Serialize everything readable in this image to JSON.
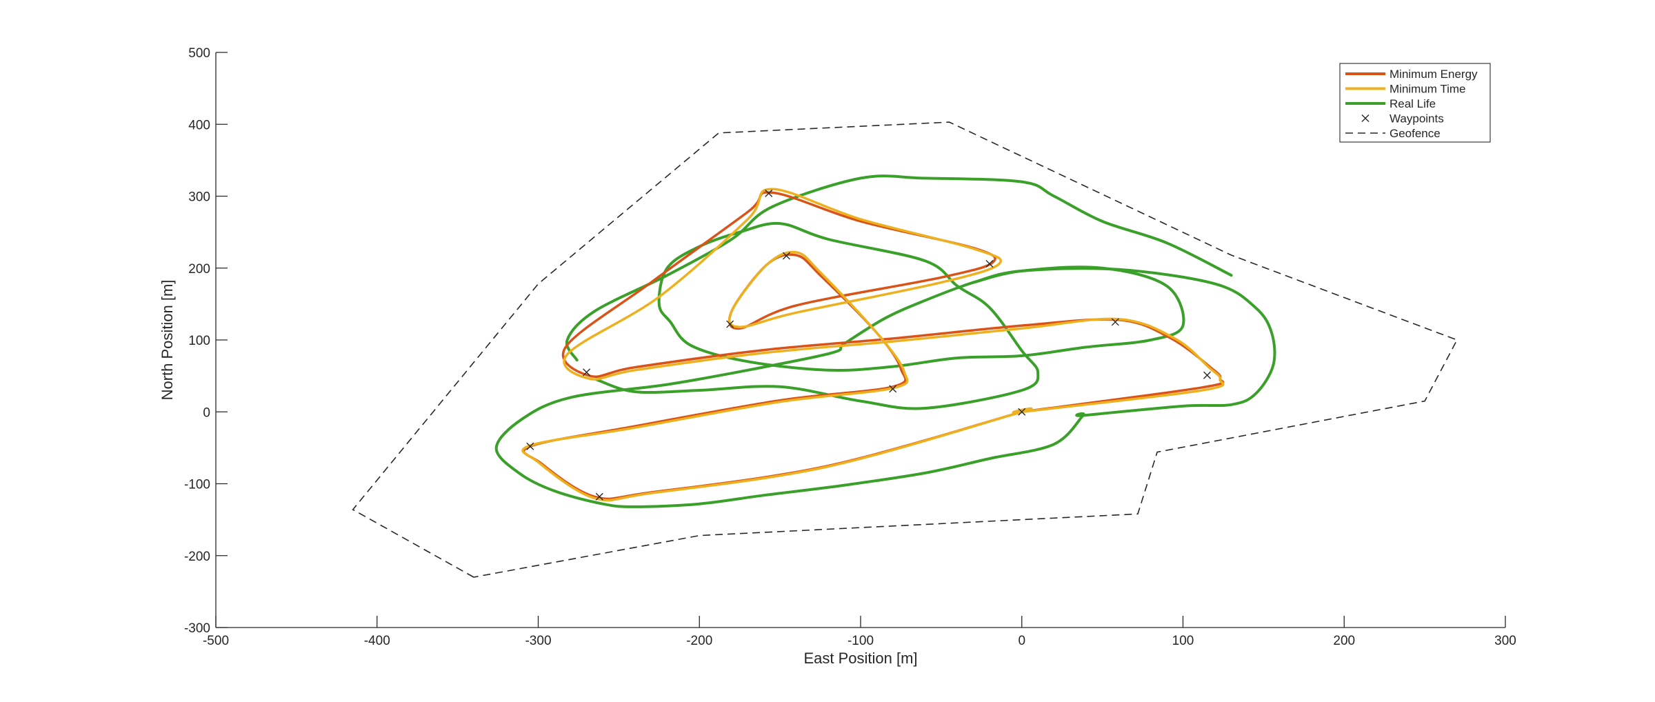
{
  "chart_data": {
    "type": "line",
    "title": "",
    "xlabel": "East Position [m]",
    "ylabel": "North Position [m]",
    "xlim": [
      -500,
      300
    ],
    "ylim": [
      -300,
      500
    ],
    "xticks": [
      -500,
      -400,
      -300,
      -200,
      -100,
      0,
      100,
      200,
      300
    ],
    "yticks": [
      -300,
      -200,
      -100,
      0,
      100,
      200,
      300,
      400,
      500
    ],
    "xtick_labels": [
      "-500",
      "-400",
      "-300",
      "-200",
      "-100",
      "0",
      "100",
      "200",
      "300"
    ],
    "ytick_labels": [
      "-300",
      "-200",
      "-100",
      "0",
      "100",
      "200",
      "300",
      "400",
      "500"
    ],
    "grid": false,
    "legend_position": "top-right",
    "colors": {
      "minimum_energy": "#d95319",
      "minimum_time": "#edb120",
      "real_life": "#3aa02a",
      "waypoints": "#262626",
      "geofence": "#262626",
      "axis": "#262626"
    },
    "series": [
      {
        "name": "Minimum Energy",
        "style": "solid",
        "points": [
          [
            0,
            0
          ],
          [
            112,
            34
          ],
          [
            123,
            46
          ],
          [
            117,
            62
          ],
          [
            92,
            103
          ],
          [
            60,
            128
          ],
          [
            0,
            120
          ],
          [
            -80,
            102
          ],
          [
            -160,
            86
          ],
          [
            -240,
            62
          ],
          [
            -268,
            50
          ],
          [
            -283,
            90
          ],
          [
            -230,
            180
          ],
          [
            -170,
            278
          ],
          [
            -155,
            305
          ],
          [
            -100,
            265
          ],
          [
            -30,
            228
          ],
          [
            -18,
            208
          ],
          [
            -50,
            187
          ],
          [
            -140,
            148
          ],
          [
            -175,
            116
          ],
          [
            -180,
            140
          ],
          [
            -158,
            205
          ],
          [
            -140,
            218
          ],
          [
            -125,
            190
          ],
          [
            -90,
            110
          ],
          [
            -75,
            60
          ],
          [
            -80,
            35
          ],
          [
            -150,
            16
          ],
          [
            -240,
            -20
          ],
          [
            -305,
            -48
          ],
          [
            -298,
            -72
          ],
          [
            -265,
            -118
          ],
          [
            -230,
            -112
          ],
          [
            -120,
            -75
          ],
          [
            0,
            0
          ]
        ]
      },
      {
        "name": "Minimum Time",
        "style": "solid",
        "points": [
          [
            0,
            0
          ],
          [
            112,
            30
          ],
          [
            123,
            45
          ],
          [
            116,
            62
          ],
          [
            95,
            102
          ],
          [
            60,
            129
          ],
          [
            0,
            116
          ],
          [
            -80,
            98
          ],
          [
            -160,
            82
          ],
          [
            -240,
            58
          ],
          [
            -268,
            46
          ],
          [
            -282,
            80
          ],
          [
            -225,
            160
          ],
          [
            -170,
            268
          ],
          [
            -155,
            310
          ],
          [
            -100,
            268
          ],
          [
            -30,
            227
          ],
          [
            -14,
            206
          ],
          [
            -50,
            180
          ],
          [
            -140,
            138
          ],
          [
            -175,
            118
          ],
          [
            -180,
            140
          ],
          [
            -158,
            205
          ],
          [
            -140,
            222
          ],
          [
            -125,
            194
          ],
          [
            -90,
            110
          ],
          [
            -73,
            56
          ],
          [
            -80,
            33
          ],
          [
            -150,
            14
          ],
          [
            -240,
            -22
          ],
          [
            -305,
            -47
          ],
          [
            -300,
            -70
          ],
          [
            -265,
            -120
          ],
          [
            -230,
            -113
          ],
          [
            -120,
            -76
          ],
          [
            0,
            0
          ]
        ]
      },
      {
        "name": "Real Life",
        "style": "solid",
        "points": [
          [
            38,
            -5
          ],
          [
            100,
            8
          ],
          [
            130,
            10
          ],
          [
            145,
            25
          ],
          [
            156,
            65
          ],
          [
            155,
            110
          ],
          [
            145,
            145
          ],
          [
            120,
            178
          ],
          [
            60,
            198
          ],
          [
            0,
            196
          ],
          [
            -30,
            180
          ],
          [
            -60,
            155
          ],
          [
            -85,
            130
          ],
          [
            -110,
            95
          ],
          [
            -118,
            82
          ],
          [
            -170,
            58
          ],
          [
            -220,
            38
          ],
          [
            -280,
            20
          ],
          [
            -310,
            -10
          ],
          [
            -326,
            -50
          ],
          [
            -312,
            -85
          ],
          [
            -290,
            -110
          ],
          [
            -260,
            -128
          ],
          [
            -240,
            -132
          ],
          [
            -200,
            -128
          ],
          [
            -160,
            -116
          ],
          [
            -110,
            -102
          ],
          [
            -60,
            -85
          ],
          [
            -20,
            -65
          ],
          [
            20,
            -45
          ],
          [
            38,
            -5
          ]
        ],
        "extra_paths": [
          [
            [
              -264,
              45
            ],
            [
              -240,
              28
            ],
            [
              -200,
              30
            ],
            [
              -150,
              35
            ],
            [
              -100,
              15
            ],
            [
              -60,
              5
            ],
            [
              0,
              30
            ],
            [
              10,
              55
            ],
            [
              0,
              85
            ],
            [
              -20,
              145
            ],
            [
              -40,
              175
            ],
            [
              -60,
              210
            ],
            [
              -120,
              240
            ],
            [
              -150,
              262
            ],
            [
              -175,
              250
            ],
            [
              -200,
              230
            ],
            [
              -220,
              200
            ],
            [
              -225,
              150
            ],
            [
              -218,
              125
            ],
            [
              -205,
              92
            ],
            [
              -170,
              70
            ],
            [
              -120,
              58
            ],
            [
              -80,
              63
            ],
            [
              -40,
              75
            ],
            [
              0,
              78
            ],
            [
              40,
              90
            ],
            [
              80,
              100
            ],
            [
              100,
              120
            ],
            [
              90,
              175
            ],
            [
              50,
              200
            ],
            [
              0,
              196
            ],
            [
              -30,
              180
            ]
          ],
          [
            [
              -276,
              72
            ],
            [
              -282,
              100
            ],
            [
              -265,
              140
            ],
            [
              -220,
              190
            ],
            [
              -180,
              240
            ],
            [
              -155,
              285
            ],
            [
              -100,
              325
            ],
            [
              -60,
              325
            ],
            [
              0,
              320
            ],
            [
              20,
              300
            ],
            [
              50,
              265
            ],
            [
              90,
              235
            ],
            [
              130,
              190
            ]
          ]
        ]
      },
      {
        "name": "Waypoints",
        "style": "marker-x",
        "points": [
          [
            -157,
            304
          ],
          [
            -146,
            217
          ],
          [
            -20,
            206
          ],
          [
            -181,
            122
          ],
          [
            -270,
            55
          ],
          [
            58,
            125
          ],
          [
            115,
            51
          ],
          [
            -80,
            32
          ],
          [
            0,
            0
          ],
          [
            -305,
            -48
          ],
          [
            -262,
            -118
          ]
        ]
      },
      {
        "name": "Geofence",
        "style": "dashed",
        "points": [
          [
            -340,
            -230
          ],
          [
            -415,
            -136
          ],
          [
            -300,
            178
          ],
          [
            -188,
            388
          ],
          [
            -45,
            403
          ],
          [
            130,
            218
          ],
          [
            270,
            100
          ],
          [
            250,
            15
          ],
          [
            84,
            -56
          ],
          [
            72,
            -142
          ],
          [
            -200,
            -172
          ],
          [
            -340,
            -230
          ]
        ]
      }
    ]
  }
}
